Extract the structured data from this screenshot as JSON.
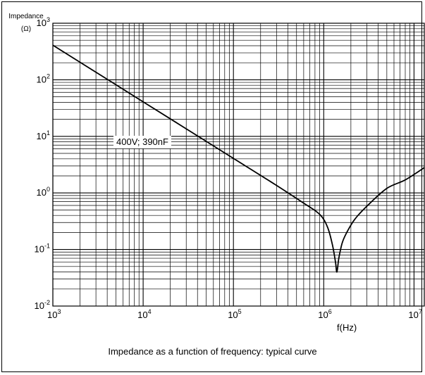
{
  "chart_data": {
    "type": "line",
    "title": "",
    "caption": "Impedance as a function of frequency: typical curve",
    "xlabel": "f(Hz)",
    "ylabel": "Impedance",
    "ylabel_unit": "(Ω)",
    "x_scale": "log",
    "y_scale": "log",
    "xlim": [
      1000,
      13000000
    ],
    "ylim": [
      0.01,
      1000
    ],
    "grid": true,
    "x_ticks": [
      {
        "base": "10",
        "exp": "3",
        "value": 1000
      },
      {
        "base": "10",
        "exp": "4",
        "value": 10000
      },
      {
        "base": "10",
        "exp": "5",
        "value": 100000
      },
      {
        "base": "10",
        "exp": "6",
        "value": 1000000
      },
      {
        "base": "10",
        "exp": "7",
        "value": 10000000
      }
    ],
    "y_ticks": [
      {
        "base": "10",
        "exp": "3",
        "value": 1000
      },
      {
        "base": "10",
        "exp": "2",
        "value": 100
      },
      {
        "base": "10",
        "exp": "1",
        "value": 10
      },
      {
        "base": "10",
        "exp": "0",
        "value": 1
      },
      {
        "base": "10",
        "exp": "-1",
        "value": 0.1
      },
      {
        "base": "10",
        "exp": "-2",
        "value": 0.01
      }
    ],
    "annotation": "400V; 390nF",
    "series": [
      {
        "name": "400V; 390nF",
        "color": "#000000",
        "x": [
          1000,
          10000,
          100000,
          300000,
          600000,
          900000,
          1100000,
          1250000,
          1350000,
          1400000,
          1470000,
          1600000,
          1800000,
          2200000,
          3000000,
          5000000,
          8000000,
          13000000
        ],
        "y": [
          408,
          40.8,
          4.08,
          1.36,
          0.66,
          0.42,
          0.25,
          0.12,
          0.06,
          0.04,
          0.07,
          0.13,
          0.2,
          0.34,
          0.58,
          1.2,
          1.7,
          2.8
        ]
      }
    ]
  }
}
